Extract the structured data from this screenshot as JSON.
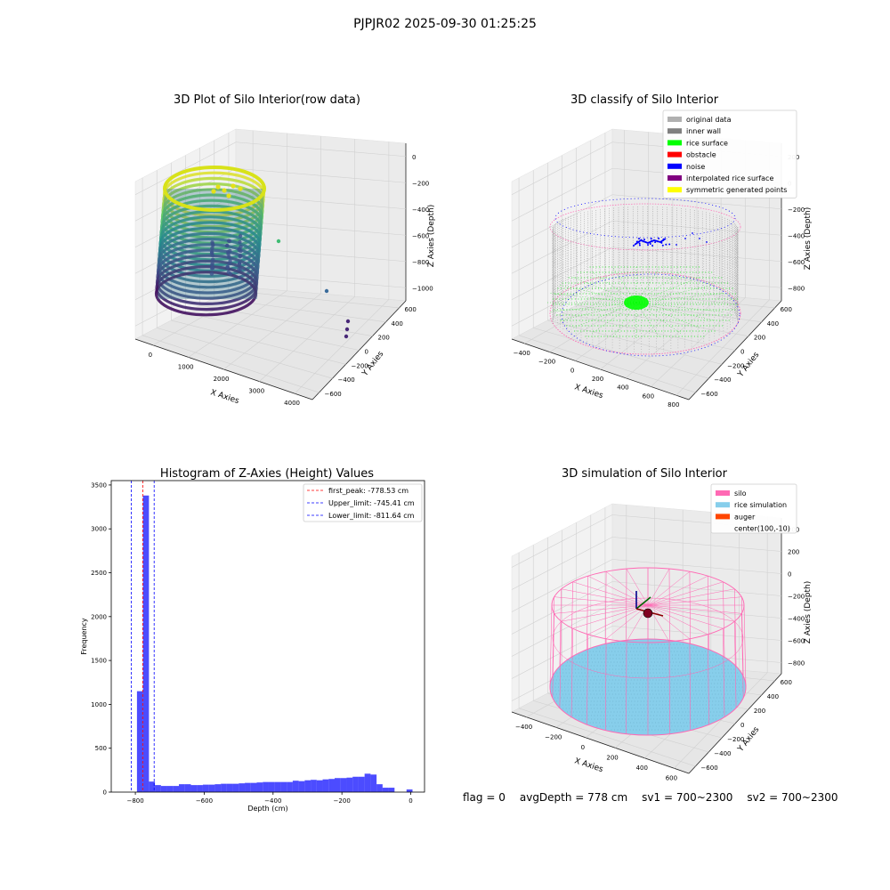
{
  "figure": {
    "title": "PJPJR02 2025-09-30 01:25:25"
  },
  "colors": {
    "rice_surface": "#00ff00",
    "noise": "#0000ff",
    "inner_wall": "#808080",
    "original": "#b0b0b0",
    "obstacle": "#ff0000",
    "interp": "#800080",
    "symmetric": "#ffff00",
    "silo": "#ff69b4",
    "rice_sim": "#87ceeb",
    "auger": "#ff4500",
    "hist_bar": "#0000ff",
    "peak_line": "#ff0000"
  },
  "chart_data": [
    {
      "type": "scatter",
      "title": "3D Plot of Silo Interior(row data)",
      "xlabel": "X Axies",
      "ylabel": "Y Axies",
      "zlabel": "Z Axies (Depth)",
      "xticks": [
        "0",
        "1000",
        "2000",
        "3000",
        "4000"
      ],
      "yticks": [
        "600",
        "400",
        "200",
        "0",
        "−200",
        "−400",
        "−600"
      ],
      "zticks": [
        "0",
        "−200",
        "−400",
        "−600",
        "−800",
        "−1000"
      ],
      "colormap": "viridis",
      "outlier_points": [
        {
          "x": 4400,
          "y": 700,
          "z": -600
        },
        {
          "x": 4450,
          "y": -500,
          "z": -1000
        },
        {
          "x": 4500,
          "y": -650,
          "z": -1000
        }
      ]
    },
    {
      "type": "scatter",
      "title": "3D classify of Silo Interior",
      "xlabel": "X Axies",
      "ylabel": "Y Axies",
      "zlabel": "Z Axies (Depth)",
      "xticks": [
        "−400",
        "−200",
        "0",
        "200",
        "400",
        "600",
        "800"
      ],
      "yticks": [
        "600",
        "400",
        "200",
        "0",
        "−200",
        "−400",
        "−600"
      ],
      "zticks": [
        "200",
        "0",
        "−200",
        "−400",
        "−600",
        "−800"
      ],
      "legend": [
        {
          "label": "original data",
          "color": "#b0b0b0"
        },
        {
          "label": "inner wall",
          "color": "#808080"
        },
        {
          "label": "rice surface",
          "color": "#00ff00"
        },
        {
          "label": "obstacle",
          "color": "#ff0000"
        },
        {
          "label": "noise",
          "color": "#0000ff"
        },
        {
          "label": "interpolated rice surface",
          "color": "#800080"
        },
        {
          "label": "symmetric generated points",
          "color": "#ffff00"
        }
      ],
      "legend_loc": "upper right"
    },
    {
      "type": "bar",
      "title": "Histogram of Z-Axies (Height) Values",
      "xlabel": "Depth (cm)",
      "ylabel": "Frequency",
      "xlim": [
        -870,
        40
      ],
      "ylim": [
        0,
        3550
      ],
      "xticks": [
        -800,
        -600,
        -400,
        -200,
        0
      ],
      "yticks": [
        0,
        500,
        1000,
        1500,
        2000,
        2500,
        3000,
        3500
      ],
      "bin_width": 17.4,
      "bins": [
        {
          "x": -786.6,
          "v": 1150
        },
        {
          "x": -769.2,
          "v": 3380
        },
        {
          "x": -751.8,
          "v": 120
        },
        {
          "x": -734.4,
          "v": 80
        },
        {
          "x": -717.0,
          "v": 70
        },
        {
          "x": -699.6,
          "v": 70
        },
        {
          "x": -682.2,
          "v": 70
        },
        {
          "x": -664.8,
          "v": 90
        },
        {
          "x": -647.4,
          "v": 90
        },
        {
          "x": -630.0,
          "v": 80
        },
        {
          "x": -612.6,
          "v": 80
        },
        {
          "x": -595.2,
          "v": 85
        },
        {
          "x": -577.8,
          "v": 85
        },
        {
          "x": -560.4,
          "v": 90
        },
        {
          "x": -543.0,
          "v": 95
        },
        {
          "x": -525.6,
          "v": 95
        },
        {
          "x": -508.2,
          "v": 95
        },
        {
          "x": -490.8,
          "v": 100
        },
        {
          "x": -473.4,
          "v": 105
        },
        {
          "x": -456.0,
          "v": 105
        },
        {
          "x": -438.6,
          "v": 110
        },
        {
          "x": -421.2,
          "v": 115
        },
        {
          "x": -403.8,
          "v": 115
        },
        {
          "x": -386.4,
          "v": 115
        },
        {
          "x": -369.0,
          "v": 115
        },
        {
          "x": -351.6,
          "v": 115
        },
        {
          "x": -334.2,
          "v": 130
        },
        {
          "x": -316.8,
          "v": 125
        },
        {
          "x": -299.4,
          "v": 135
        },
        {
          "x": -282.0,
          "v": 140
        },
        {
          "x": -264.6,
          "v": 135
        },
        {
          "x": -247.2,
          "v": 145
        },
        {
          "x": -229.8,
          "v": 150
        },
        {
          "x": -212.4,
          "v": 160
        },
        {
          "x": -195.0,
          "v": 160
        },
        {
          "x": -177.6,
          "v": 165
        },
        {
          "x": -160.2,
          "v": 175
        },
        {
          "x": -142.8,
          "v": 175
        },
        {
          "x": -125.4,
          "v": 210
        },
        {
          "x": -108.0,
          "v": 200
        },
        {
          "x": -90.6,
          "v": 90
        },
        {
          "x": -73.2,
          "v": 50
        },
        {
          "x": -55.8,
          "v": 50
        },
        {
          "x": -3.6,
          "v": 30
        }
      ],
      "vlines": [
        {
          "label": "first_peak: -778.53 cm",
          "x": -778.53,
          "color": "#ff0000"
        },
        {
          "label": "Upper_limit: -745.41 cm",
          "x": -745.41,
          "color": "#0000ff"
        },
        {
          "label": "Lower_limit: -811.64 cm",
          "x": -811.64,
          "color": "#0000ff"
        }
      ]
    },
    {
      "type": "scatter",
      "title": "3D simulation of Silo Interior",
      "xlabel": "X Axies",
      "ylabel": "Y Axies",
      "zlabel": "Z Axies (Depth)",
      "xticks": [
        "−400",
        "−200",
        "0",
        "200",
        "400",
        "600"
      ],
      "yticks": [
        "600",
        "400",
        "200",
        "0",
        "−200",
        "−400",
        "−600"
      ],
      "zticks": [
        "400",
        "200",
        "0",
        "−200",
        "−400",
        "−600",
        "−800"
      ],
      "legend": [
        {
          "label": "silo",
          "color": "#ff69b4"
        },
        {
          "label": "rice simulation",
          "color": "#87ceeb"
        },
        {
          "label": "auger",
          "color": "#ff4500"
        },
        {
          "label": "center(100,-10)",
          "color": ""
        }
      ],
      "legend_loc": "upper right"
    }
  ],
  "footer": {
    "flag": "flag = 0",
    "avg": "avgDepth = 778 cm",
    "sv1": "sv1 = 700~2300",
    "sv2": "sv2 = 700~2300"
  }
}
